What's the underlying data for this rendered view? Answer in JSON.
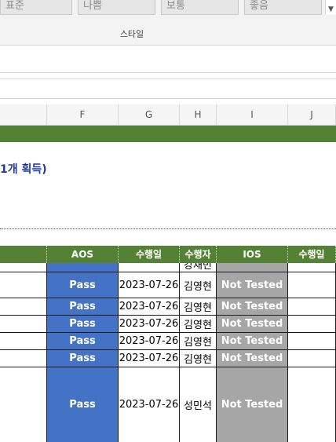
{
  "ribbon": {
    "styles": [
      "표준",
      "나쁨",
      "보통",
      "좋음"
    ],
    "scroll_icon": "chevron-down-icon",
    "group_label": "스타일"
  },
  "columns": [
    "F",
    "G",
    "H",
    "I",
    "J"
  ],
  "sheet": {
    "subtitle": "1개 획득)"
  },
  "table": {
    "headers": [
      "AOS",
      "수행일",
      "수행자",
      "IOS",
      "수행일"
    ],
    "partial_row": {
      "tester": "강재빈"
    },
    "rows": [
      {
        "aos": "Pass",
        "date": "2023-07-26",
        "tester": "김영현",
        "ios": "Not Tested"
      },
      {
        "aos": "Pass",
        "date": "2023-07-26",
        "tester": "김영현",
        "ios": "Not Tested"
      },
      {
        "aos": "Pass",
        "date": "2023-07-26",
        "tester": "김영현",
        "ios": "Not Tested"
      },
      {
        "aos": "Pass",
        "date": "2023-07-26",
        "tester": "김영현",
        "ios": "Not Tested"
      },
      {
        "aos": "Pass",
        "date": "2023-07-26",
        "tester": "김영현",
        "ios": "Not Tested"
      },
      {
        "aos": "Pass",
        "date": "2023-07-26",
        "tester": "성민석",
        "ios": "Not Tested"
      }
    ]
  },
  "colors": {
    "header_green": "#548235",
    "pass_blue": "#4472c4",
    "not_tested_gray": "#a6a6a6",
    "subtitle_blue": "#1f3aa6"
  }
}
